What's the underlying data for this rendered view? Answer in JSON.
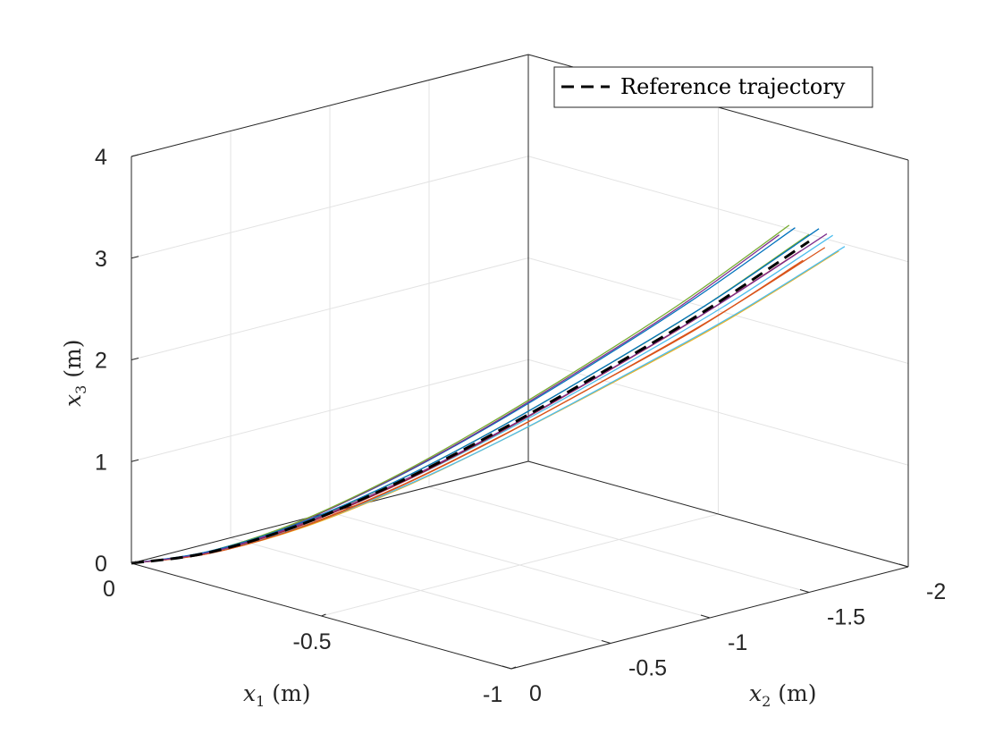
{
  "chart_data": {
    "type": "line3d",
    "title": "",
    "xlabel": "x1 (m)",
    "ylabel": "x2 (m)",
    "zlabel": "x3 (m)",
    "xlabel_main": "x",
    "xlabel_sub": "1",
    "xlabel_unit": " (m)",
    "ylabel_main": "x",
    "ylabel_sub": "2",
    "ylabel_unit": " (m)",
    "zlabel_main": "x",
    "zlabel_sub": "3",
    "zlabel_unit": " (m)",
    "xlim": [
      -1,
      0
    ],
    "ylim": [
      -2,
      0
    ],
    "zlim": [
      0,
      4
    ],
    "xticks": [
      0,
      -0.5,
      -1
    ],
    "xtick_labels": [
      "0",
      "-0.5",
      "-1"
    ],
    "yticks": [
      0,
      -0.5,
      -1,
      -1.5,
      -2
    ],
    "ytick_labels": [
      "0",
      "-0.5",
      "-1",
      "-1.5",
      "-2"
    ],
    "zticks": [
      0,
      1,
      2,
      3,
      4
    ],
    "ztick_labels": [
      "0",
      "1",
      "2",
      "3",
      "4"
    ],
    "grid": true,
    "legend_position": "top-right",
    "reference": {
      "name": "Reference trajectory",
      "color": "#000000",
      "style": "dashed",
      "x1": [
        0,
        -0.14,
        -0.29,
        -0.43,
        -0.57,
        -0.71,
        -0.86,
        -1
      ],
      "x2": [
        0,
        -0.12,
        -0.29,
        -0.5,
        -0.72,
        -0.97,
        -1.23,
        -1.5
      ],
      "x3": [
        0,
        0.19,
        0.53,
        0.97,
        1.49,
        2.08,
        2.74,
        3.45
      ]
    },
    "trials_x1": [
      0,
      -0.14,
      -0.29,
      -0.43,
      -0.57,
      -0.71,
      -0.86,
      -1
    ],
    "trials": [
      {
        "color": "#0072BD",
        "x2": [
          0,
          -0.11,
          -0.28,
          -0.48,
          -0.68,
          -0.92,
          -1.17,
          -1.43
        ],
        "x3": [
          0,
          0.2,
          0.56,
          1.02,
          1.56,
          2.18,
          2.88,
          3.62
        ]
      },
      {
        "color": "#D95319",
        "x2": [
          0,
          -0.13,
          -0.3,
          -0.53,
          -0.76,
          -1.02,
          -1.29,
          -1.58
        ],
        "x3": [
          0,
          0.18,
          0.51,
          0.94,
          1.45,
          2.02,
          2.66,
          3.35
        ]
      },
      {
        "color": "#EDB120",
        "x2": [
          0,
          -0.13,
          -0.32,
          -0.55,
          -0.79,
          -1.07,
          -1.35,
          -1.65
        ],
        "x3": [
          0,
          0.18,
          0.5,
          0.92,
          1.42,
          1.98,
          2.6,
          3.28
        ]
      },
      {
        "color": "#7E2F8E",
        "x2": [
          0,
          -0.11,
          -0.26,
          -0.45,
          -0.65,
          -0.87,
          -1.11,
          -1.35
        ],
        "x3": [
          0,
          0.2,
          0.55,
          1.01,
          1.55,
          2.16,
          2.85,
          3.59
        ]
      },
      {
        "color": "#77AC30",
        "x2": [
          0,
          -0.12,
          -0.29,
          -0.5,
          -0.72,
          -0.97,
          -1.23,
          -1.5
        ],
        "x3": [
          0,
          0.19,
          0.54,
          0.99,
          1.52,
          2.12,
          2.79,
          3.52
        ]
      },
      {
        "color": "#4DBEEE",
        "x2": [
          0,
          -0.13,
          -0.31,
          -0.54,
          -0.78,
          -1.05,
          -1.33,
          -1.62
        ],
        "x3": [
          0,
          0.19,
          0.53,
          0.97,
          1.49,
          2.08,
          2.74,
          3.45
        ]
      },
      {
        "color": "#A2142F",
        "x2": [
          0,
          -0.12,
          -0.28,
          -0.49,
          -0.7,
          -0.94,
          -1.19,
          -1.46
        ],
        "x3": [
          0,
          0.19,
          0.52,
          0.95,
          1.46,
          2.04,
          2.69,
          3.38
        ]
      },
      {
        "color": "#4DBEEE",
        "x2": [
          0,
          -0.13,
          -0.32,
          -0.56,
          -0.81,
          -1.09,
          -1.38,
          -1.68
        ],
        "x3": [
          0,
          0.18,
          0.51,
          0.93,
          1.43,
          2.0,
          2.63,
          3.31
        ]
      },
      {
        "color": "#77AC30",
        "x2": [
          0,
          -0.11,
          -0.27,
          -0.47,
          -0.67,
          -0.9,
          -1.14,
          -1.4
        ],
        "x3": [
          0,
          0.2,
          0.56,
          1.03,
          1.58,
          2.2,
          2.9,
          3.66
        ]
      },
      {
        "color": "#0072BD",
        "x2": [
          0,
          -0.12,
          -0.3,
          -0.52,
          -0.74,
          -1.0,
          -1.27,
          -1.55
        ],
        "x3": [
          0,
          0.2,
          0.55,
          1.0,
          1.53,
          2.14,
          2.82,
          3.55
        ]
      },
      {
        "color": "#D95319",
        "x2": [
          0,
          -0.12,
          -0.28,
          -0.49,
          -0.71,
          -0.95,
          -1.21,
          -1.47
        ],
        "x3": [
          0,
          0.18,
          0.5,
          0.92,
          1.42,
          1.98,
          2.6,
          3.28
        ]
      },
      {
        "color": "#7E2F8E",
        "x2": [
          0,
          -0.13,
          -0.31,
          -0.53,
          -0.76,
          -1.03,
          -1.3,
          -1.59
        ],
        "x3": [
          0,
          0.19,
          0.54,
          0.98,
          1.5,
          2.1,
          2.77,
          3.48
        ]
      }
    ]
  }
}
